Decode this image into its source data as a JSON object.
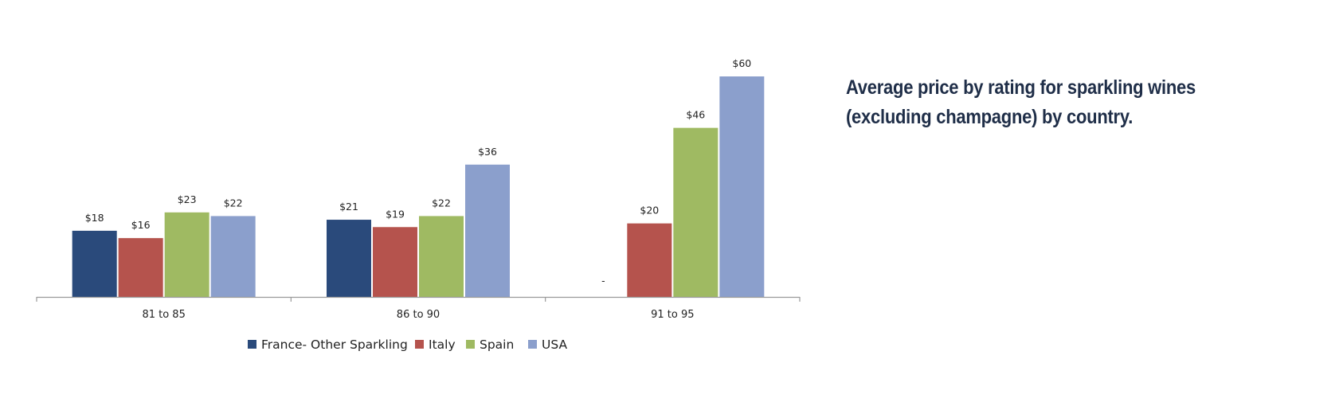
{
  "chart_data": {
    "type": "bar",
    "title_lines": [
      "Average price by rating for sparkling wines",
      "(excluding champagne) by country."
    ],
    "categories": [
      "81 to 85",
      "86 to 90",
      "91 to 95"
    ],
    "series": [
      {
        "name": "France- Other Sparkling",
        "color": "#2a4a7b",
        "values": [
          18,
          21,
          0
        ],
        "labels": [
          "$18",
          "$21",
          "-"
        ]
      },
      {
        "name": "Italy",
        "color": "#b5534d",
        "values": [
          16,
          19,
          20
        ],
        "labels": [
          "$16",
          "$19",
          "$20"
        ]
      },
      {
        "name": "Spain",
        "color": "#9fba62",
        "values": [
          23,
          22,
          46
        ],
        "labels": [
          "$23",
          "$22",
          "$46"
        ]
      },
      {
        "name": "USA",
        "color": "#8b9fcc",
        "values": [
          22,
          36,
          60
        ],
        "labels": [
          "$22",
          "$36",
          "$60"
        ]
      }
    ],
    "ylim": [
      0,
      60
    ],
    "y_axis_visible": false,
    "grid": false,
    "legend_position": "bottom",
    "xlabel": "",
    "ylabel": ""
  }
}
